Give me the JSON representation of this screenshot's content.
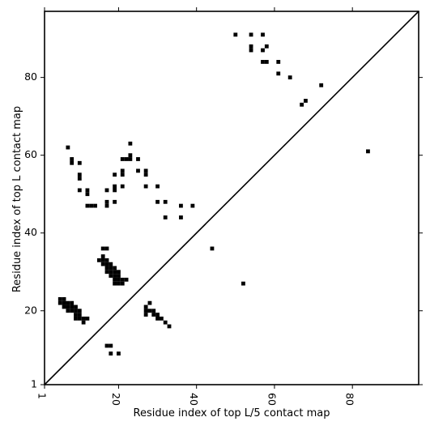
{
  "chart_data": {
    "type": "scatter",
    "xlabel": "Residue index of top L/5 contact map",
    "ylabel": "Residue index of top L contact map",
    "xlim": [
      1,
      97
    ],
    "ylim": [
      1,
      97
    ],
    "x_ticks": [
      1,
      20,
      40,
      60,
      80
    ],
    "x_tick_labels": [
      "1",
      "20",
      "40",
      "60",
      "80"
    ],
    "y_ticks": [
      1,
      20,
      40,
      60,
      80
    ],
    "y_tick_labels": [
      "1",
      "20",
      "40",
      "60",
      "80"
    ],
    "diagonal": true,
    "marker": "square",
    "point_color": "#000000",
    "points": [
      [
        5,
        22
      ],
      [
        5,
        23
      ],
      [
        6,
        21
      ],
      [
        6,
        22
      ],
      [
        6,
        23
      ],
      [
        7,
        20
      ],
      [
        7,
        21
      ],
      [
        7,
        22
      ],
      [
        8,
        20
      ],
      [
        8,
        21
      ],
      [
        8,
        22
      ],
      [
        9,
        18
      ],
      [
        9,
        19
      ],
      [
        9,
        20
      ],
      [
        9,
        21
      ],
      [
        10,
        18
      ],
      [
        10,
        19
      ],
      [
        10,
        20
      ],
      [
        11,
        17
      ],
      [
        11,
        18
      ],
      [
        12,
        18
      ],
      [
        7,
        62
      ],
      [
        8,
        59
      ],
      [
        8,
        58
      ],
      [
        10,
        58
      ],
      [
        10,
        55
      ],
      [
        10,
        54
      ],
      [
        10,
        51
      ],
      [
        12,
        51
      ],
      [
        12,
        50
      ],
      [
        12,
        47
      ],
      [
        13,
        47
      ],
      [
        14,
        47
      ],
      [
        15,
        33
      ],
      [
        16,
        33
      ],
      [
        16,
        34
      ],
      [
        16,
        36
      ],
      [
        17,
        36
      ],
      [
        16,
        32
      ],
      [
        17,
        31
      ],
      [
        17,
        32
      ],
      [
        17,
        33
      ],
      [
        17,
        30
      ],
      [
        18,
        30
      ],
      [
        18,
        31
      ],
      [
        18,
        32
      ],
      [
        18,
        29
      ],
      [
        19,
        29
      ],
      [
        19,
        30
      ],
      [
        19,
        31
      ],
      [
        19,
        28
      ],
      [
        20,
        28
      ],
      [
        20,
        29
      ],
      [
        20,
        30
      ],
      [
        19,
        27
      ],
      [
        20,
        27
      ],
      [
        21,
        27
      ],
      [
        21,
        28
      ],
      [
        22,
        28
      ],
      [
        17,
        51
      ],
      [
        17,
        48
      ],
      [
        17,
        47
      ],
      [
        19,
        55
      ],
      [
        19,
        52
      ],
      [
        19,
        51
      ],
      [
        19,
        48
      ],
      [
        21,
        59
      ],
      [
        21,
        56
      ],
      [
        21,
        55
      ],
      [
        21,
        52
      ],
      [
        22,
        59
      ],
      [
        23,
        59
      ],
      [
        23,
        60
      ],
      [
        23,
        63
      ],
      [
        25,
        59
      ],
      [
        25,
        56
      ],
      [
        27,
        56
      ],
      [
        27,
        55
      ],
      [
        27,
        52
      ],
      [
        30,
        52
      ],
      [
        30,
        48
      ],
      [
        32,
        48
      ],
      [
        32,
        44
      ],
      [
        36,
        47
      ],
      [
        36,
        44
      ],
      [
        39,
        47
      ],
      [
        27,
        21
      ],
      [
        27,
        20
      ],
      [
        27,
        19
      ],
      [
        28,
        22
      ],
      [
        28,
        20
      ],
      [
        29,
        20
      ],
      [
        29,
        19
      ],
      [
        30,
        19
      ],
      [
        30,
        18
      ],
      [
        31,
        18
      ],
      [
        32,
        17
      ],
      [
        33,
        16
      ],
      [
        17,
        11
      ],
      [
        18,
        11
      ],
      [
        18,
        9
      ],
      [
        20,
        9
      ],
      [
        44,
        36
      ],
      [
        52,
        27
      ],
      [
        50,
        91
      ],
      [
        54,
        91
      ],
      [
        54,
        88
      ],
      [
        54,
        87
      ],
      [
        57,
        91
      ],
      [
        57,
        87
      ],
      [
        57,
        84
      ],
      [
        58,
        84
      ],
      [
        58,
        88
      ],
      [
        61,
        84
      ],
      [
        61,
        81
      ],
      [
        64,
        80
      ],
      [
        67,
        73
      ],
      [
        68,
        74
      ],
      [
        72,
        78
      ],
      [
        84,
        61
      ]
    ]
  }
}
